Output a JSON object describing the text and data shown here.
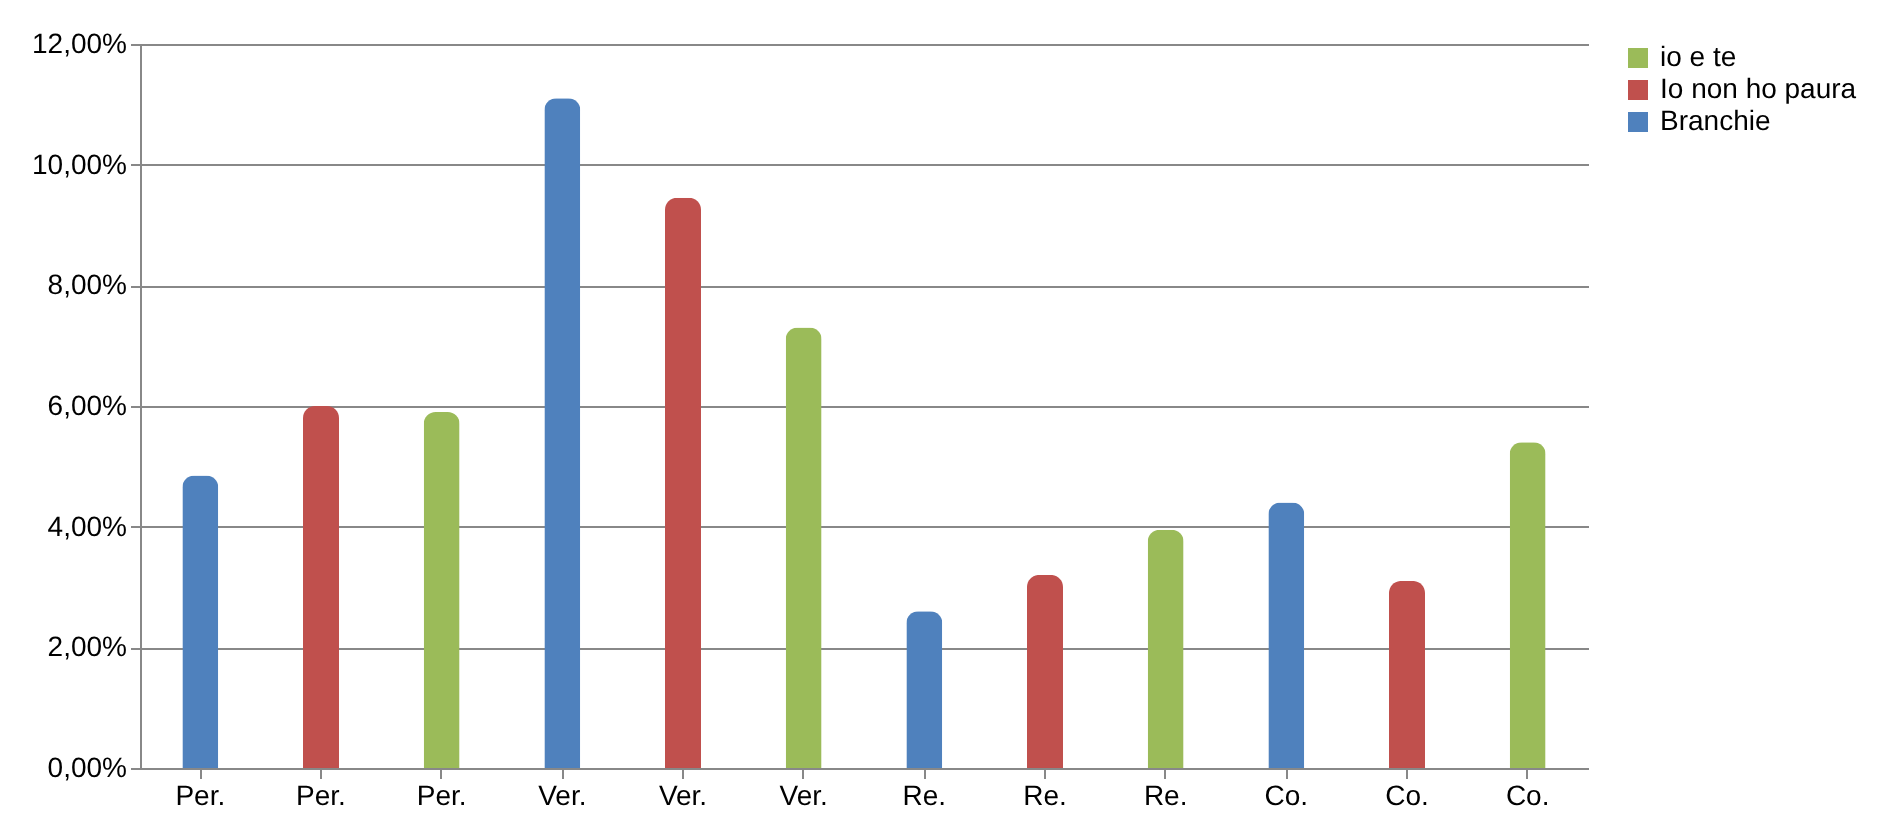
{
  "chart_data": {
    "type": "bar",
    "categories": [
      "Per.",
      "Per.",
      "Per.",
      "Ver.",
      "Ver.",
      "Ver.",
      "Re.",
      "Re.",
      "Re.",
      "Co.",
      "Co.",
      "Co."
    ],
    "series": [
      {
        "name": "io e te",
        "color": "#9bbb59",
        "values": [
          null,
          null,
          5.9,
          null,
          null,
          7.3,
          null,
          null,
          3.95,
          null,
          null,
          5.4
        ]
      },
      {
        "name": "Io non ho paura",
        "color": "#c0504d",
        "values": [
          null,
          6.0,
          null,
          null,
          9.45,
          null,
          null,
          3.2,
          null,
          null,
          3.1,
          null
        ]
      },
      {
        "name": "Branchie",
        "color": "#4f81bd",
        "values": [
          4.85,
          null,
          null,
          11.1,
          null,
          null,
          2.6,
          null,
          null,
          4.4,
          null,
          null
        ]
      }
    ],
    "ylim": [
      0,
      12
    ],
    "yticks": [
      {
        "value": 0,
        "label": "0,00%"
      },
      {
        "value": 2,
        "label": "2,00%"
      },
      {
        "value": 4,
        "label": "4,00%"
      },
      {
        "value": 6,
        "label": "6,00%"
      },
      {
        "value": 8,
        "label": "8,00%"
      },
      {
        "value": 10,
        "label": "10,00%"
      },
      {
        "value": 12,
        "label": "12,00%"
      }
    ],
    "grid": "y",
    "legend": "right"
  }
}
